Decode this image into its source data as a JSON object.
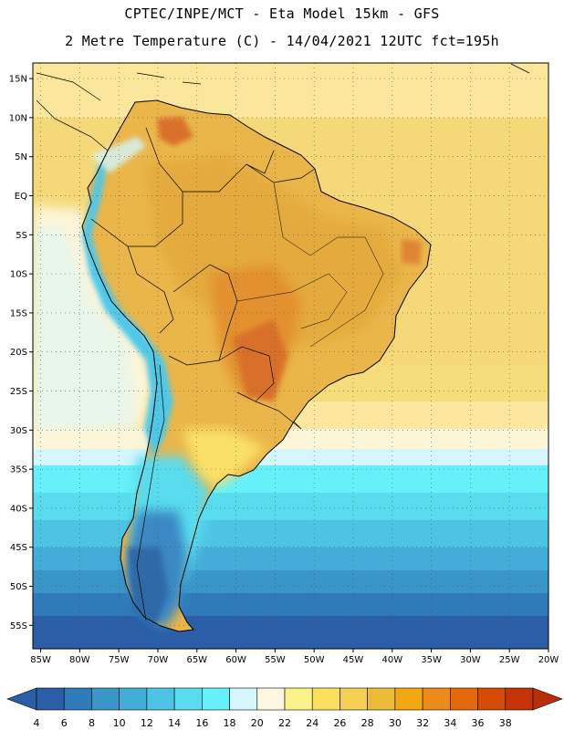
{
  "header": {
    "line1": "CPTEC/INPE/MCT -  Eta Model 15km - GFS",
    "line2": "2 Metre Temperature (C) - 14/04/2021 12UTC fct=195h"
  },
  "map": {
    "lon_range": [
      -86,
      -20
    ],
    "lat_range": [
      -58,
      17
    ],
    "lat_ticks": [
      {
        "v": 15,
        "label": "15N"
      },
      {
        "v": 10,
        "label": "10N"
      },
      {
        "v": 5,
        "label": "5N"
      },
      {
        "v": 0,
        "label": "EQ"
      },
      {
        "v": -5,
        "label": "5S"
      },
      {
        "v": -10,
        "label": "10S"
      },
      {
        "v": -15,
        "label": "15S"
      },
      {
        "v": -20,
        "label": "20S"
      },
      {
        "v": -25,
        "label": "25S"
      },
      {
        "v": -30,
        "label": "30S"
      },
      {
        "v": -35,
        "label": "35S"
      },
      {
        "v": -40,
        "label": "40S"
      },
      {
        "v": -45,
        "label": "45S"
      },
      {
        "v": -50,
        "label": "50S"
      },
      {
        "v": -55,
        "label": "55S"
      }
    ],
    "lon_ticks": [
      {
        "v": -85,
        "label": "85W"
      },
      {
        "v": -80,
        "label": "80W"
      },
      {
        "v": -75,
        "label": "75W"
      },
      {
        "v": -70,
        "label": "70W"
      },
      {
        "v": -65,
        "label": "65W"
      },
      {
        "v": -60,
        "label": "60W"
      },
      {
        "v": -55,
        "label": "55W"
      },
      {
        "v": -50,
        "label": "50W"
      },
      {
        "v": -45,
        "label": "45W"
      },
      {
        "v": -40,
        "label": "40W"
      },
      {
        "v": -35,
        "label": "35W"
      },
      {
        "v": -30,
        "label": "30W"
      },
      {
        "v": -25,
        "label": "25W"
      },
      {
        "v": -20,
        "label": "20W"
      }
    ],
    "colors": {
      "ocean_warm": "#f5d978",
      "land_warm": "#eab64a",
      "land_hot": "#e3902e",
      "hotspot": "#d9702a",
      "andes_cool": "#4fc8e8",
      "patagonia": "#3a88c4",
      "southern_ocean": "#2e6aa8",
      "pale_band": "#fdf5d8",
      "cyan_band": "#5fd8ee"
    }
  },
  "colorbar": {
    "labels": [
      "4",
      "6",
      "8",
      "10",
      "12",
      "14",
      "16",
      "18",
      "20",
      "22",
      "24",
      "26",
      "28",
      "30",
      "32",
      "34",
      "36",
      "38"
    ],
    "colors": [
      "#2a5ea6",
      "#2f7ab8",
      "#3a96c8",
      "#44acd8",
      "#4ec4e4",
      "#58dcee",
      "#66f0fa",
      "#d4f6fc",
      "#fdf7e0",
      "#fcf28a",
      "#fbe060",
      "#f4cf54",
      "#ecbb3a",
      "#f2a812",
      "#ec8a1c",
      "#e6680e",
      "#d44a06",
      "#c43408"
    ],
    "low_arrow_color": "#2a5ea6",
    "high_arrow_color": "#b82e0a"
  }
}
